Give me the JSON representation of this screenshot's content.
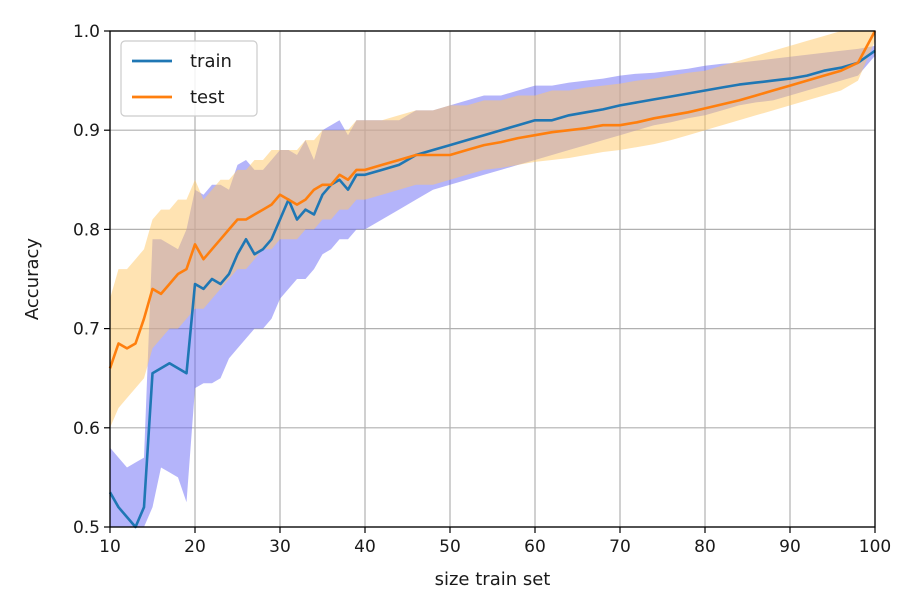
{
  "chart_data": {
    "type": "line",
    "title": "",
    "xlabel": "size train set",
    "ylabel": "Accuracy",
    "xlim": [
      10,
      100
    ],
    "ylim": [
      0.5,
      1.0
    ],
    "xticks": [
      "10",
      "20",
      "30",
      "40",
      "50",
      "60",
      "70",
      "80",
      "90",
      "100"
    ],
    "yticks": [
      "0.5",
      "0.6",
      "0.7",
      "0.8",
      "0.9",
      "1.0"
    ],
    "grid": true,
    "legend_position": "top-left",
    "x": [
      10,
      11,
      12,
      13,
      14,
      15,
      16,
      17,
      18,
      19,
      20,
      21,
      22,
      23,
      24,
      25,
      26,
      27,
      28,
      29,
      30,
      31,
      32,
      33,
      34,
      35,
      36,
      37,
      38,
      39,
      40,
      42,
      44,
      46,
      48,
      50,
      52,
      54,
      56,
      58,
      60,
      62,
      64,
      66,
      68,
      70,
      72,
      74,
      76,
      78,
      80,
      82,
      84,
      86,
      88,
      90,
      92,
      94,
      96,
      98,
      100
    ],
    "series": [
      {
        "name": "train",
        "color": "#1f77b4",
        "band_color": "#6a6af5",
        "values": [
          0.535,
          0.52,
          0.51,
          0.495,
          0.52,
          0.655,
          0.66,
          0.665,
          0.66,
          0.655,
          0.745,
          0.74,
          0.75,
          0.745,
          0.755,
          0.775,
          0.79,
          0.775,
          0.78,
          0.79,
          0.81,
          0.83,
          0.81,
          0.82,
          0.815,
          0.835,
          0.845,
          0.85,
          0.84,
          0.855,
          0.855,
          0.86,
          0.865,
          0.875,
          0.88,
          0.885,
          0.89,
          0.895,
          0.9,
          0.905,
          0.91,
          0.91,
          0.915,
          0.918,
          0.921,
          0.925,
          0.928,
          0.931,
          0.934,
          0.937,
          0.94,
          0.943,
          0.946,
          0.948,
          0.95,
          0.952,
          0.955,
          0.96,
          0.963,
          0.968,
          0.98
        ],
        "lower": [
          0.5,
          0.5,
          0.5,
          0.5,
          0.5,
          0.52,
          0.56,
          0.555,
          0.55,
          0.525,
          0.64,
          0.645,
          0.645,
          0.65,
          0.67,
          0.68,
          0.69,
          0.7,
          0.7,
          0.71,
          0.73,
          0.74,
          0.75,
          0.75,
          0.76,
          0.775,
          0.78,
          0.79,
          0.79,
          0.8,
          0.8,
          0.81,
          0.82,
          0.83,
          0.84,
          0.845,
          0.85,
          0.855,
          0.86,
          0.865,
          0.87,
          0.875,
          0.88,
          0.885,
          0.89,
          0.895,
          0.9,
          0.905,
          0.908,
          0.912,
          0.915,
          0.92,
          0.925,
          0.928,
          0.93,
          0.935,
          0.94,
          0.945,
          0.95,
          0.955,
          0.975
        ],
        "upper": [
          0.58,
          0.57,
          0.56,
          0.565,
          0.57,
          0.79,
          0.79,
          0.785,
          0.78,
          0.8,
          0.84,
          0.835,
          0.845,
          0.845,
          0.84,
          0.865,
          0.87,
          0.86,
          0.86,
          0.87,
          0.88,
          0.88,
          0.875,
          0.89,
          0.87,
          0.9,
          0.905,
          0.91,
          0.895,
          0.91,
          0.91,
          0.91,
          0.91,
          0.92,
          0.92,
          0.925,
          0.93,
          0.935,
          0.935,
          0.94,
          0.945,
          0.945,
          0.948,
          0.95,
          0.952,
          0.955,
          0.957,
          0.958,
          0.96,
          0.962,
          0.965,
          0.967,
          0.968,
          0.97,
          0.972,
          0.974,
          0.976,
          0.978,
          0.98,
          0.982,
          0.985
        ]
      },
      {
        "name": "test",
        "color": "#ff7f0e",
        "band_color": "#ffc766",
        "values": [
          0.66,
          0.685,
          0.68,
          0.685,
          0.71,
          0.74,
          0.735,
          0.745,
          0.755,
          0.76,
          0.785,
          0.77,
          0.78,
          0.79,
          0.8,
          0.81,
          0.81,
          0.815,
          0.82,
          0.825,
          0.835,
          0.83,
          0.825,
          0.83,
          0.84,
          0.845,
          0.845,
          0.855,
          0.85,
          0.86,
          0.86,
          0.865,
          0.87,
          0.875,
          0.875,
          0.875,
          0.88,
          0.885,
          0.888,
          0.892,
          0.895,
          0.898,
          0.9,
          0.902,
          0.905,
          0.905,
          0.908,
          0.912,
          0.915,
          0.918,
          0.922,
          0.926,
          0.93,
          0.935,
          0.94,
          0.945,
          0.95,
          0.955,
          0.96,
          0.968,
          1.0
        ],
        "lower": [
          0.6,
          0.62,
          0.63,
          0.64,
          0.65,
          0.68,
          0.69,
          0.7,
          0.7,
          0.71,
          0.72,
          0.72,
          0.73,
          0.74,
          0.75,
          0.76,
          0.76,
          0.77,
          0.78,
          0.78,
          0.79,
          0.79,
          0.79,
          0.8,
          0.8,
          0.81,
          0.81,
          0.82,
          0.82,
          0.83,
          0.83,
          0.835,
          0.84,
          0.845,
          0.845,
          0.85,
          0.855,
          0.86,
          0.862,
          0.865,
          0.868,
          0.87,
          0.872,
          0.875,
          0.878,
          0.88,
          0.883,
          0.886,
          0.89,
          0.895,
          0.9,
          0.905,
          0.91,
          0.915,
          0.92,
          0.925,
          0.93,
          0.935,
          0.94,
          0.95,
          0.99
        ],
        "upper": [
          0.73,
          0.76,
          0.76,
          0.77,
          0.78,
          0.81,
          0.82,
          0.82,
          0.83,
          0.83,
          0.85,
          0.83,
          0.84,
          0.85,
          0.85,
          0.86,
          0.86,
          0.87,
          0.87,
          0.88,
          0.88,
          0.88,
          0.88,
          0.89,
          0.89,
          0.9,
          0.9,
          0.9,
          0.9,
          0.91,
          0.91,
          0.91,
          0.915,
          0.92,
          0.92,
          0.925,
          0.925,
          0.93,
          0.93,
          0.935,
          0.935,
          0.94,
          0.94,
          0.943,
          0.945,
          0.947,
          0.95,
          0.952,
          0.955,
          0.958,
          0.96,
          0.965,
          0.97,
          0.975,
          0.98,
          0.985,
          0.99,
          0.995,
          1.0,
          1.0,
          1.0
        ]
      }
    ]
  }
}
